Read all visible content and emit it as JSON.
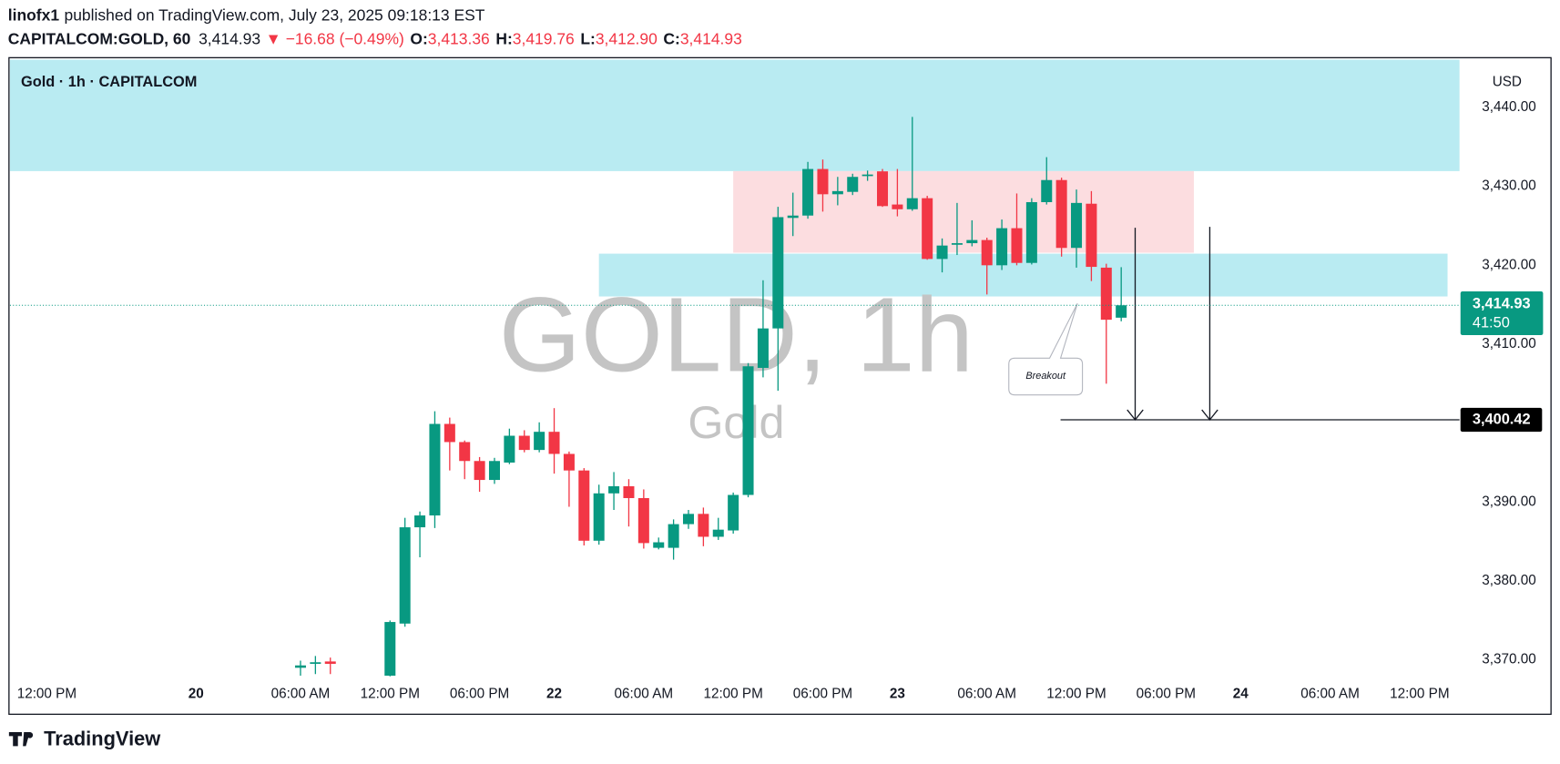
{
  "header": {
    "publisher": "linofx1",
    "published": "published on TradingView.com, July 23, 2025 09:18:13 EST",
    "symbol": "CAPITALCOM:GOLD, 60",
    "price": "3,414.93",
    "change": "▼ −16.68 (−0.49%)",
    "ohlc": [
      {
        "label": "O:",
        "value": "3,413.36"
      },
      {
        "label": "H:",
        "value": "3,419.76"
      },
      {
        "label": "L:",
        "value": "3,412.90"
      },
      {
        "label": "C:",
        "value": "3,414.93"
      }
    ]
  },
  "footer": {
    "brand": "TradingView"
  },
  "chart_data": {
    "type": "candlestick",
    "title": "Gold · 1h · CAPITALCOM",
    "watermark": "GOLD, 1h",
    "watermark_sub": "Gold",
    "currency": "USD",
    "annotation": "Breakout",
    "up_color": "#089981",
    "down_color": "#f23645",
    "x": [
      17,
      18,
      19,
      23,
      24,
      25,
      26,
      27,
      28,
      29,
      30,
      31,
      32,
      33,
      34,
      35,
      36,
      37,
      38,
      39,
      40,
      41,
      42,
      43,
      44,
      45,
      46,
      47,
      48,
      49,
      50,
      51,
      52,
      53,
      54,
      55,
      56,
      57,
      58,
      59,
      60,
      61,
      62,
      63,
      64,
      65,
      66,
      67,
      68,
      69,
      70,
      71,
      72
    ],
    "open": [
      3369.0,
      3369.5,
      3369.8,
      3368.0,
      3374.6,
      3386.8,
      3388.3,
      3399.9,
      3397.6,
      3395.2,
      3392.8,
      3395.0,
      3398.4,
      3396.6,
      3398.9,
      3396.1,
      3394.0,
      3385.1,
      3391.1,
      3392.0,
      3390.5,
      3384.2,
      3384.2,
      3387.2,
      3388.5,
      3385.6,
      3386.4,
      3390.9,
      3407.0,
      3412.0,
      3426.0,
      3426.3,
      3432.2,
      3429.0,
      3429.3,
      3431.3,
      3431.9,
      3427.7,
      3427.1,
      3428.5,
      3420.8,
      3422.6,
      3422.8,
      3423.2,
      3420.0,
      3424.7,
      3420.3,
      3428.0,
      3430.8,
      3422.2,
      3427.8,
      3419.7,
      3413.36
    ],
    "high": [
      3369.9,
      3370.5,
      3370.3,
      3375.0,
      3388.0,
      3388.8,
      3401.5,
      3400.7,
      3397.8,
      3395.7,
      3395.6,
      3399.3,
      3399.1,
      3400.1,
      3401.9,
      3396.4,
      3394.3,
      3392.2,
      3393.8,
      3392.9,
      3391.6,
      3385.5,
      3387.8,
      3389.0,
      3389.3,
      3388.0,
      3391.2,
      3407.6,
      3418.1,
      3427.4,
      3429.2,
      3433.1,
      3433.4,
      3431.2,
      3431.6,
      3432.0,
      3432.2,
      3432.2,
      3438.8,
      3428.8,
      3423.4,
      3427.9,
      3425.7,
      3423.5,
      3425.8,
      3429.1,
      3428.5,
      3433.7,
      3431.1,
      3429.6,
      3429.4,
      3420.2,
      3419.76
    ],
    "low": [
      3368.0,
      3368.2,
      3368.2,
      3367.9,
      3374.2,
      3383.0,
      3386.7,
      3394.0,
      3392.9,
      3391.3,
      3392.3,
      3394.8,
      3396.3,
      3396.3,
      3393.6,
      3389.4,
      3384.5,
      3384.6,
      3389.0,
      3386.9,
      3384.1,
      3384.0,
      3382.7,
      3386.6,
      3384.4,
      3385.2,
      3386.0,
      3390.6,
      3405.8,
      3404.1,
      3423.7,
      3425.9,
      3426.8,
      3427.6,
      3428.9,
      3430.7,
      3427.4,
      3426.2,
      3426.9,
      3420.7,
      3419.1,
      3421.3,
      3422.4,
      3416.3,
      3419.4,
      3420.0,
      3420.1,
      3427.7,
      3421.1,
      3419.7,
      3418.0,
      3405.0,
      3412.9
    ],
    "close": [
      3369.3,
      3369.7,
      3369.5,
      3374.8,
      3386.8,
      3388.3,
      3399.9,
      3397.6,
      3395.2,
      3392.8,
      3395.2,
      3398.4,
      3396.6,
      3398.9,
      3396.1,
      3394.0,
      3385.1,
      3391.1,
      3392.0,
      3390.5,
      3384.8,
      3384.9,
      3387.2,
      3388.5,
      3385.6,
      3386.5,
      3390.9,
      3407.2,
      3412.0,
      3426.1,
      3426.3,
      3432.2,
      3429.0,
      3429.4,
      3431.2,
      3431.5,
      3427.5,
      3427.1,
      3428.5,
      3420.8,
      3422.5,
      3422.8,
      3423.2,
      3420.0,
      3424.7,
      3420.3,
      3428.0,
      3430.8,
      3422.2,
      3427.9,
      3419.8,
      3413.1,
      3414.93
    ],
    "xlim": [
      -2.47,
      94.67
    ],
    "xticks": [
      {
        "value": 0,
        "label": "12:00 PM"
      },
      {
        "value": 10,
        "label": "20"
      },
      {
        "value": 17,
        "label": "06:00 AM"
      },
      {
        "value": 23,
        "label": "12:00 PM"
      },
      {
        "value": 29,
        "label": "06:00 PM"
      },
      {
        "value": 34,
        "label": "22"
      },
      {
        "value": 40,
        "label": "06:00 AM"
      },
      {
        "value": 46,
        "label": "12:00 PM"
      },
      {
        "value": 52,
        "label": "06:00 PM"
      },
      {
        "value": 57,
        "label": "23"
      },
      {
        "value": 63,
        "label": "06:00 AM"
      },
      {
        "value": 69,
        "label": "12:00 PM"
      },
      {
        "value": 75,
        "label": "06:00 PM"
      },
      {
        "value": 80,
        "label": "24"
      },
      {
        "value": 86,
        "label": "06:00 AM"
      },
      {
        "value": 92,
        "label": "12:00 PM"
      }
    ],
    "ylim": [
      3367.9,
      3446.05
    ],
    "yticks": [
      {
        "value": 3370,
        "label": "3,370.00"
      },
      {
        "value": 3380,
        "label": "3,380.00"
      },
      {
        "value": 3390,
        "label": "3,390.00"
      },
      {
        "value": 3410,
        "label": "3,410.00"
      },
      {
        "value": 3420,
        "label": "3,420.00"
      },
      {
        "value": 3430,
        "label": "3,430.00"
      },
      {
        "value": 3440,
        "label": "3,440.00"
      }
    ],
    "last_price": {
      "value": 3414.93,
      "label": "3,414.93",
      "countdown": "41:50"
    },
    "price_line": {
      "value": 3400.42,
      "label": "3,400.42"
    }
  }
}
